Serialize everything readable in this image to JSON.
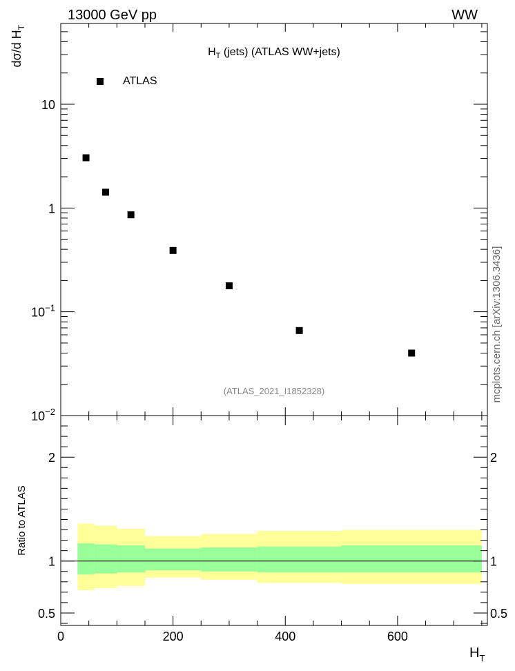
{
  "header": {
    "left": "13000 GeV pp",
    "right": "WW"
  },
  "side_label": "mcplots.cern.ch [arXiv:1306.3436]",
  "chart_data": [
    {
      "type": "scatter",
      "title_main": "H",
      "title_sub": "T",
      "title_rest": " (jets) (ATLAS WW+jets)",
      "ylabel_main": "dσ/d H",
      "ylabel_sub": "T",
      "yscale": "log",
      "ylim": [
        0.01,
        60
      ],
      "xlim": [
        0,
        760
      ],
      "y_ticks": [
        {
          "value": 10,
          "base": "10",
          "exp": ""
        },
        {
          "value": 1,
          "base": "1",
          "exp": ""
        },
        {
          "value": 0.1,
          "base": "10",
          "exp": "−1"
        },
        {
          "value": 0.01,
          "base": "10",
          "exp": "−2"
        }
      ],
      "legend": {
        "label": "ATLAS",
        "placement": "top-left"
      },
      "analysis_label": "(ATLAS_2021_I1852328)",
      "series": [
        {
          "name": "ATLAS",
          "color": "#000000",
          "x": [
            45,
            80,
            125,
            200,
            300,
            425,
            625
          ],
          "y": [
            3.05,
            1.42,
            0.86,
            0.39,
            0.178,
            0.066,
            0.04
          ]
        }
      ]
    },
    {
      "type": "area",
      "ylabel": "Ratio to ATLAS",
      "ylim": [
        0.38,
        2.4
      ],
      "xlim": [
        0,
        760
      ],
      "x_ticks": [
        "0",
        "200",
        "400",
        "600"
      ],
      "x_tick_values": [
        0,
        200,
        400,
        600
      ],
      "xlabel_main": "H",
      "xlabel_sub": "T",
      "y_ticks": [
        "0.5",
        "1",
        "2"
      ],
      "y_tick_values": [
        0.5,
        1,
        2
      ],
      "reference_line": 1,
      "bins": [
        30,
        60,
        100,
        150,
        250,
        350,
        500,
        750
      ],
      "band_outer": {
        "color": "#ffff99",
        "low": [
          0.72,
          0.74,
          0.76,
          0.84,
          0.82,
          0.79,
          0.78
        ],
        "high": [
          1.36,
          1.34,
          1.31,
          1.24,
          1.26,
          1.29,
          1.3
        ]
      },
      "band_inner": {
        "color": "#99ff99",
        "low": [
          0.87,
          0.88,
          0.89,
          0.91,
          0.9,
          0.89,
          0.89
        ],
        "high": [
          1.17,
          1.16,
          1.15,
          1.12,
          1.13,
          1.14,
          1.15
        ]
      }
    }
  ]
}
